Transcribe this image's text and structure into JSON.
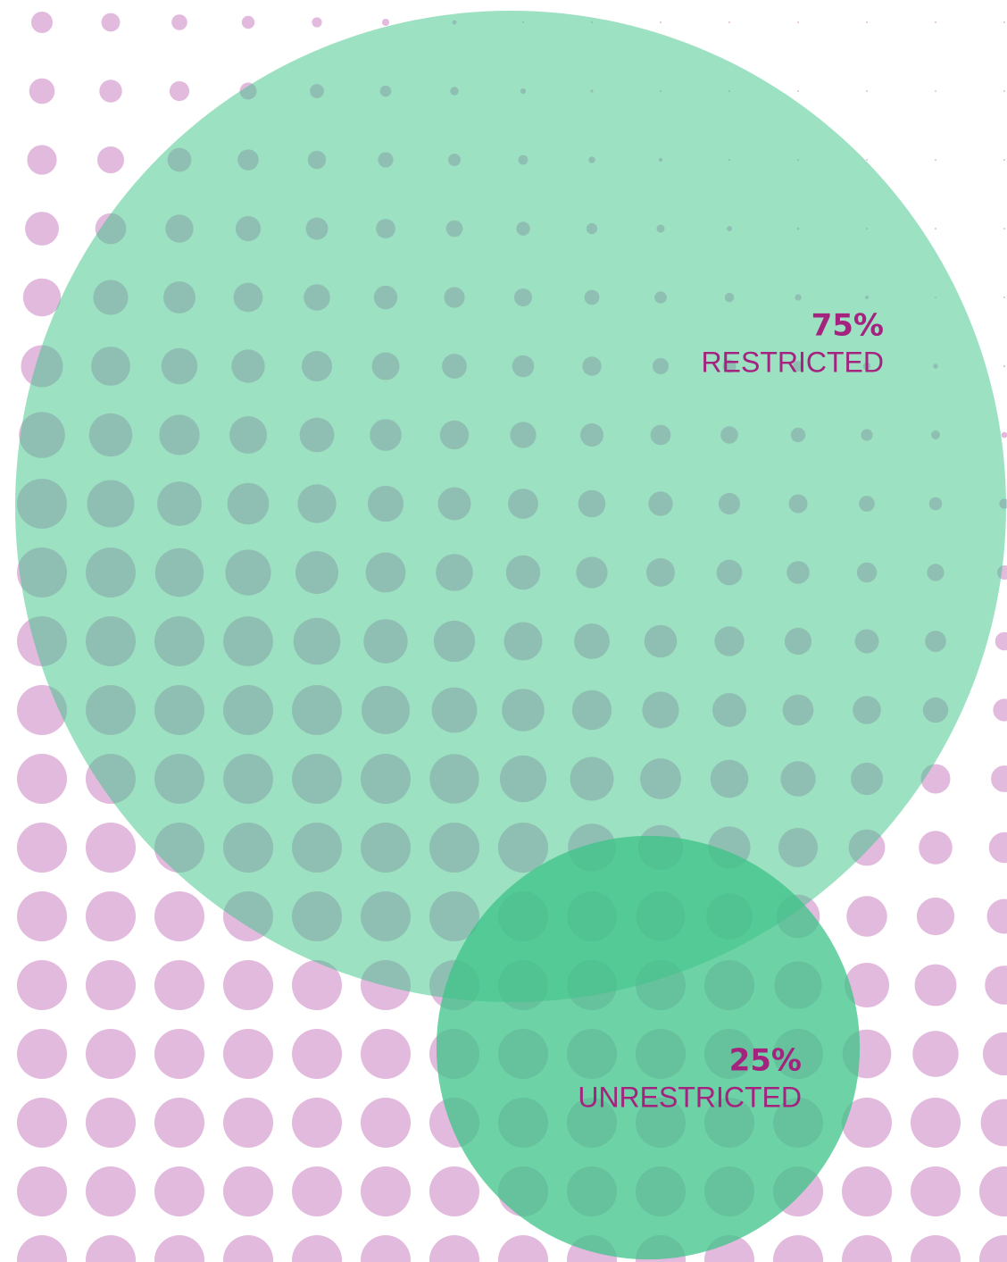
{
  "chart_data": {
    "type": "bubble",
    "categories": [
      "RESTRICTED",
      "UNRESTRICTED"
    ],
    "values": [
      75,
      25
    ],
    "value_labels": [
      "75%",
      "25%"
    ],
    "colors": [
      "#3cc387",
      "#3cc387"
    ]
  }
}
